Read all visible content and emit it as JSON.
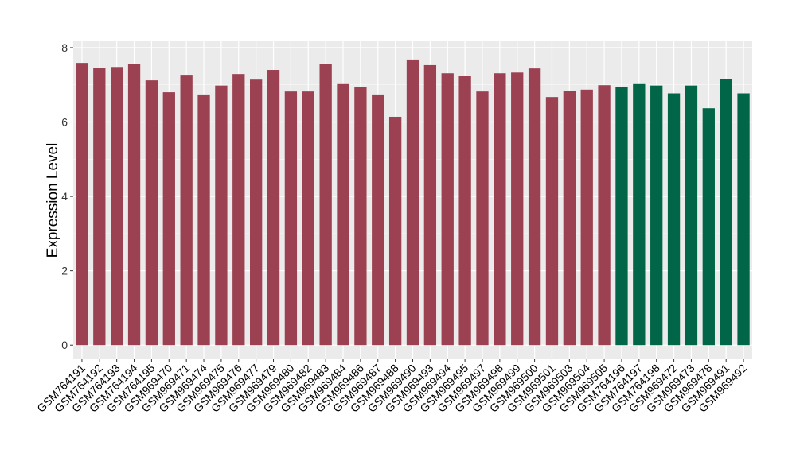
{
  "chart_data": {
    "type": "bar",
    "title": "",
    "xlabel": "",
    "ylabel": "Expression Level",
    "ylim": [
      -0.38,
      8.17
    ],
    "yticks": [
      0,
      2,
      4,
      6,
      8
    ],
    "grid": true,
    "legend": "none",
    "colors": {
      "group1": "#9b4151",
      "group2": "#006647",
      "panel": "#ebebeb",
      "grid": "#ffffff"
    },
    "categories": [
      "GSM764191",
      "GSM764192",
      "GSM764193",
      "GSM764194",
      "GSM764195",
      "GSM969470",
      "GSM969471",
      "GSM969474",
      "GSM969475",
      "GSM969476",
      "GSM969477",
      "GSM969479",
      "GSM969480",
      "GSM969482",
      "GSM969483",
      "GSM969484",
      "GSM969486",
      "GSM969487",
      "GSM969488",
      "GSM969490",
      "GSM969493",
      "GSM969494",
      "GSM969495",
      "GSM969497",
      "GSM969498",
      "GSM969499",
      "GSM969500",
      "GSM969501",
      "GSM969503",
      "GSM969504",
      "GSM969505",
      "GSM764196",
      "GSM764197",
      "GSM764198",
      "GSM969472",
      "GSM969473",
      "GSM969478",
      "GSM969491",
      "GSM969492"
    ],
    "values": [
      7.59,
      7.46,
      7.48,
      7.55,
      7.12,
      6.8,
      7.27,
      6.74,
      6.98,
      7.29,
      7.14,
      7.4,
      6.82,
      6.82,
      7.55,
      7.02,
      6.95,
      6.74,
      6.14,
      7.68,
      7.53,
      7.31,
      7.25,
      6.82,
      7.31,
      7.33,
      7.44,
      6.67,
      6.84,
      6.87,
      6.99,
      6.95,
      7.02,
      6.98,
      6.77,
      6.98,
      6.37,
      7.16,
      6.77
    ],
    "groups": [
      1,
      1,
      1,
      1,
      1,
      1,
      1,
      1,
      1,
      1,
      1,
      1,
      1,
      1,
      1,
      1,
      1,
      1,
      1,
      1,
      1,
      1,
      1,
      1,
      1,
      1,
      1,
      1,
      1,
      1,
      1,
      2,
      2,
      2,
      2,
      2,
      2,
      2,
      2
    ]
  }
}
